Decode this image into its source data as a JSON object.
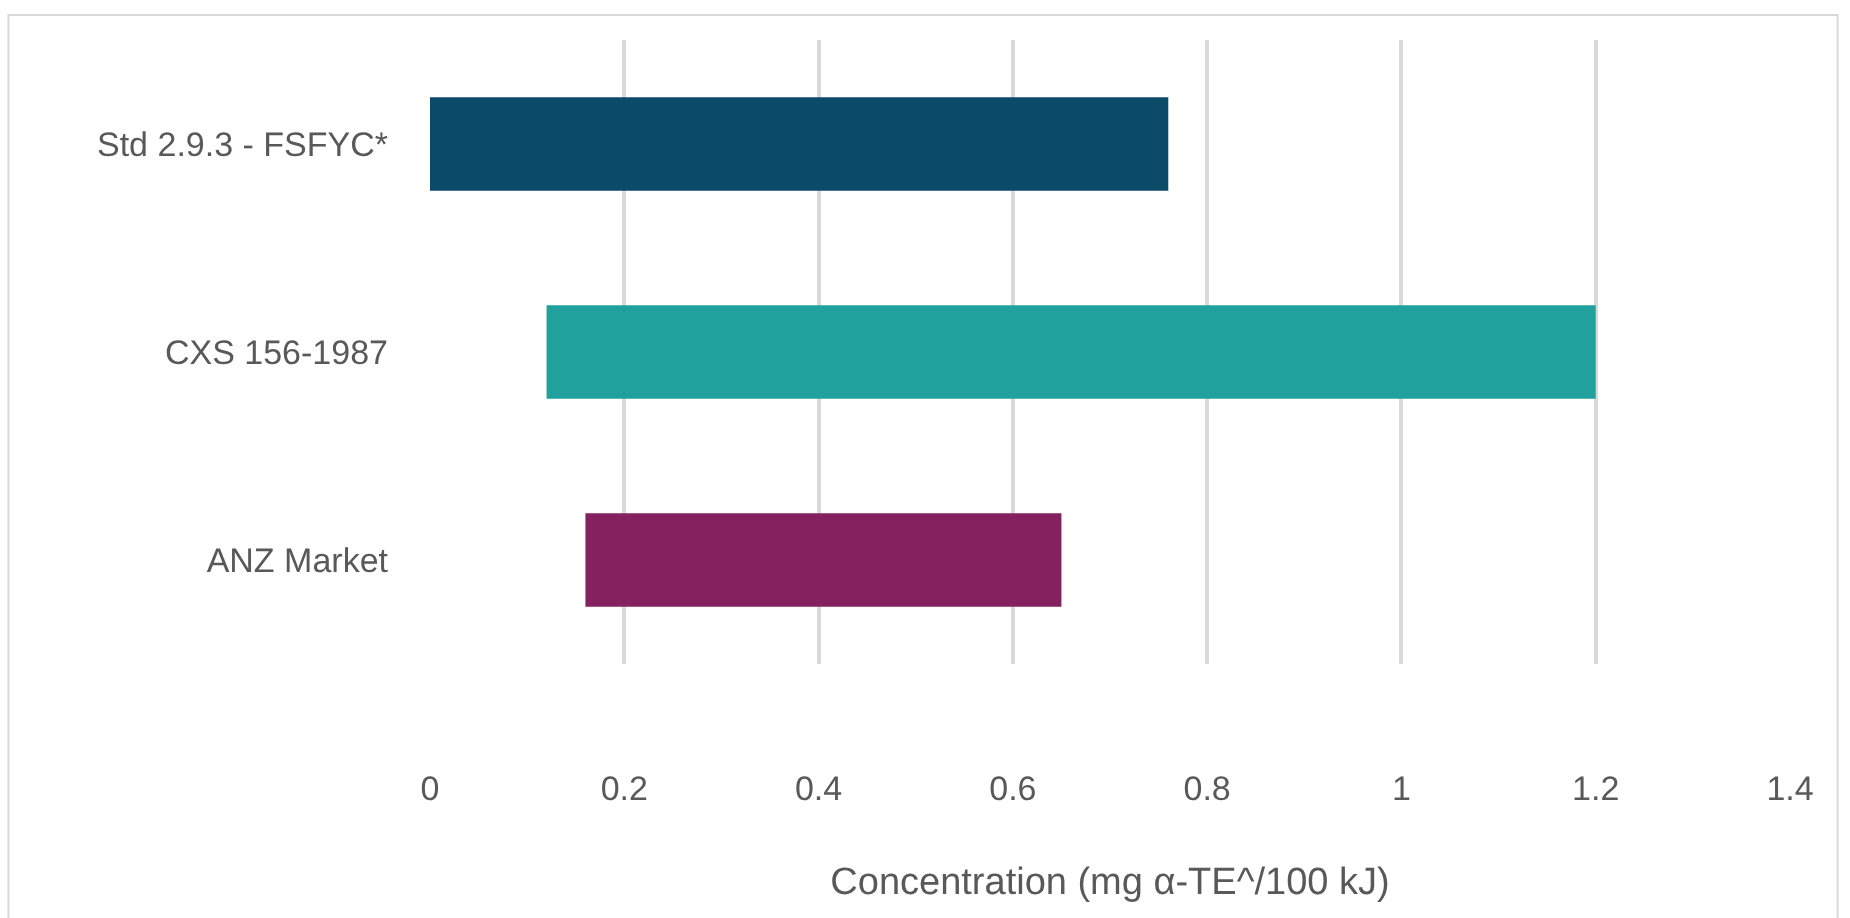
{
  "chart_data": {
    "type": "bar",
    "orientation": "horizontal",
    "xlabel": "Concentration (mg α-TE^/100 kJ)",
    "categories": [
      "Std 2.9.3 - FSFYC*",
      "CXS 156-1987",
      "ANZ Market"
    ],
    "base": [
      0,
      0.12,
      0.16
    ],
    "values": [
      0.76,
      1.08,
      0.49
    ],
    "colors": [
      "#0b4a68",
      "#20a19c",
      "#85215e"
    ],
    "xlim": [
      0,
      1.4
    ],
    "xticks": [
      0,
      0.2,
      0.4,
      0.6,
      0.8,
      1,
      1.2,
      1.4
    ],
    "grid": "x"
  }
}
